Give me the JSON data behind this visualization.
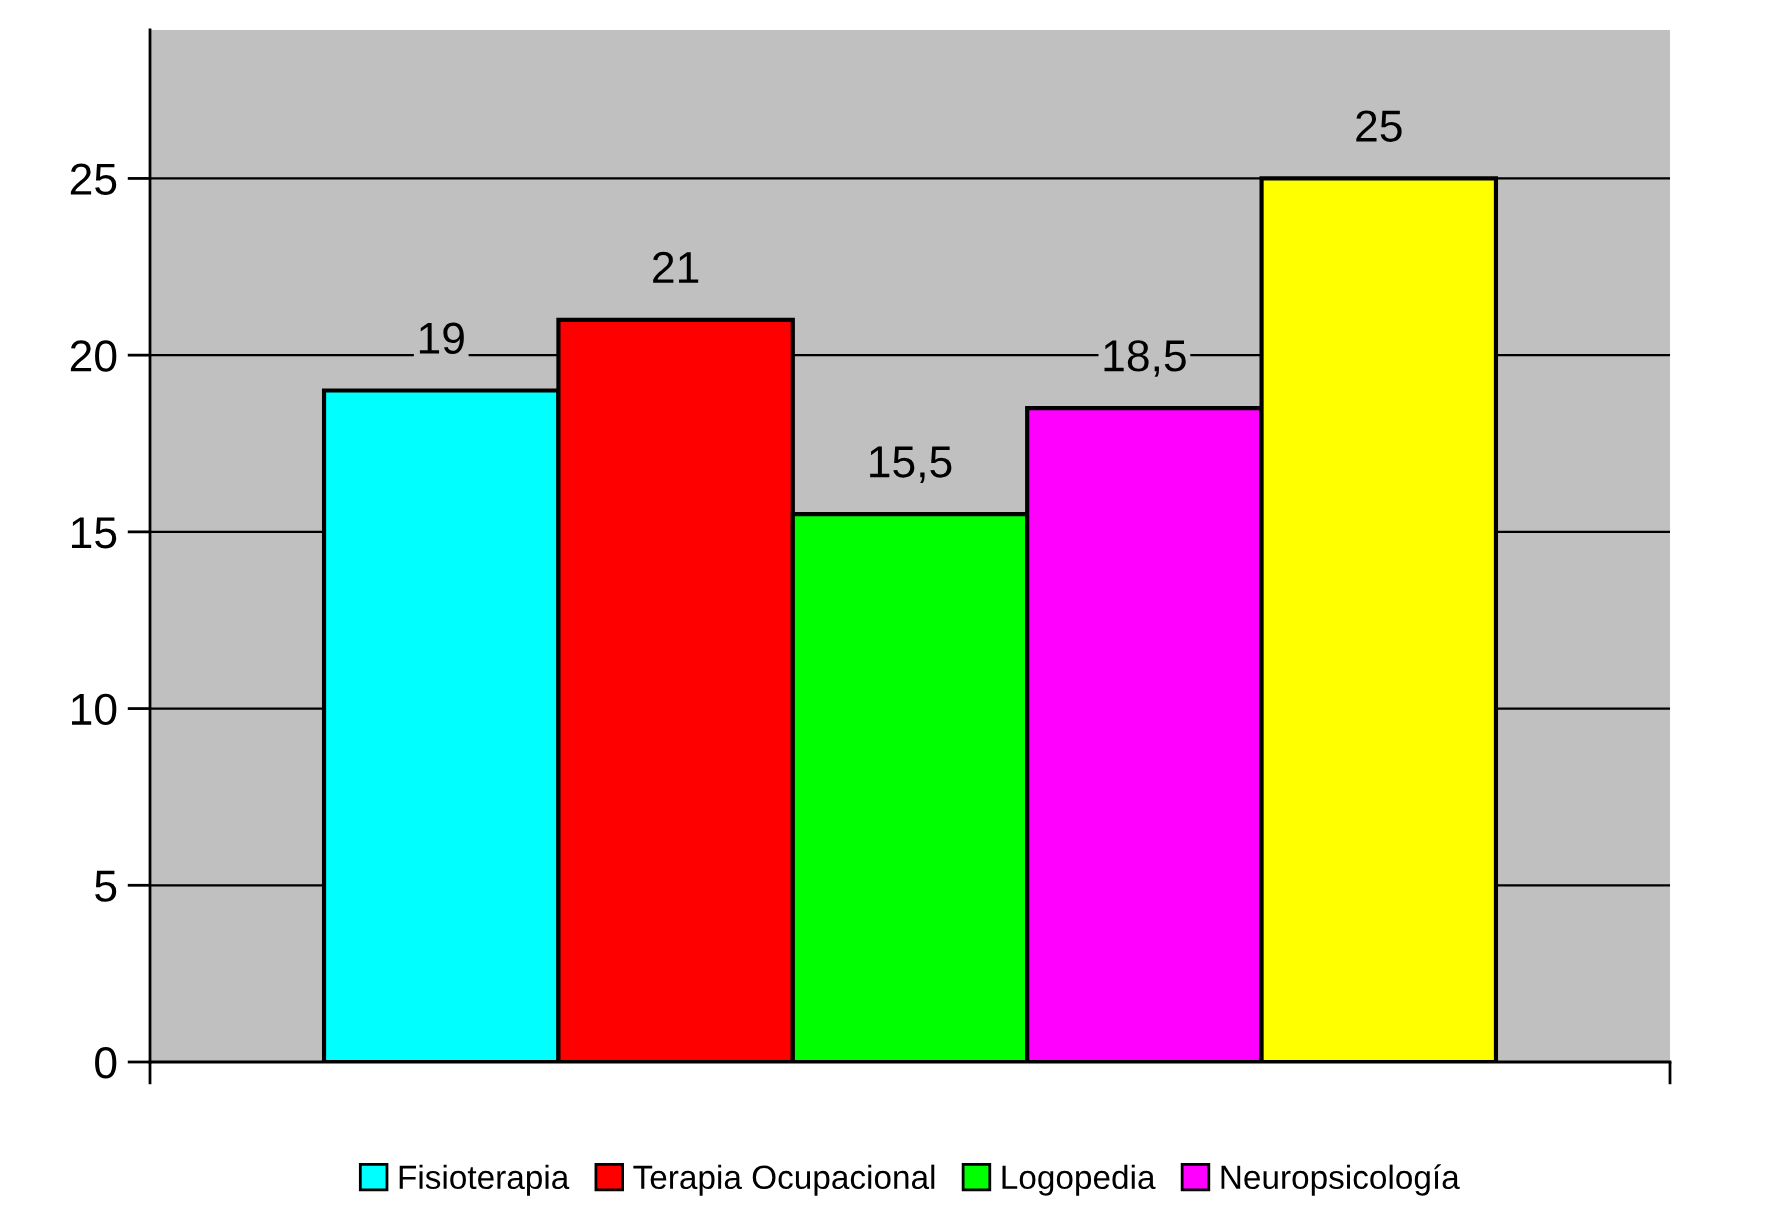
{
  "chart_data": {
    "type": "bar",
    "categories": [
      null
    ],
    "series": [
      {
        "name": "Fisioterapia",
        "color": "#00ffff",
        "values": [
          19
        ],
        "value_labels": [
          "19"
        ]
      },
      {
        "name": "Terapia Ocupacional",
        "color": "#ff0000",
        "values": [
          21
        ],
        "value_labels": [
          "21"
        ]
      },
      {
        "name": "Logopedia",
        "color": "#00ff00",
        "values": [
          15.5
        ],
        "value_labels": [
          "15,5"
        ]
      },
      {
        "name": "Neuropsicología",
        "color": "#ff00ff",
        "values": [
          18.5
        ],
        "value_labels": [
          "18,5"
        ]
      },
      {
        "color": "#ffff00",
        "values": [
          25
        ],
        "value_labels": [
          "25"
        ]
      }
    ],
    "ylim": [
      0,
      29.2
    ],
    "yticks": [
      0,
      5,
      10,
      15,
      20,
      25
    ],
    "grid": "y",
    "legend": "bottom"
  }
}
